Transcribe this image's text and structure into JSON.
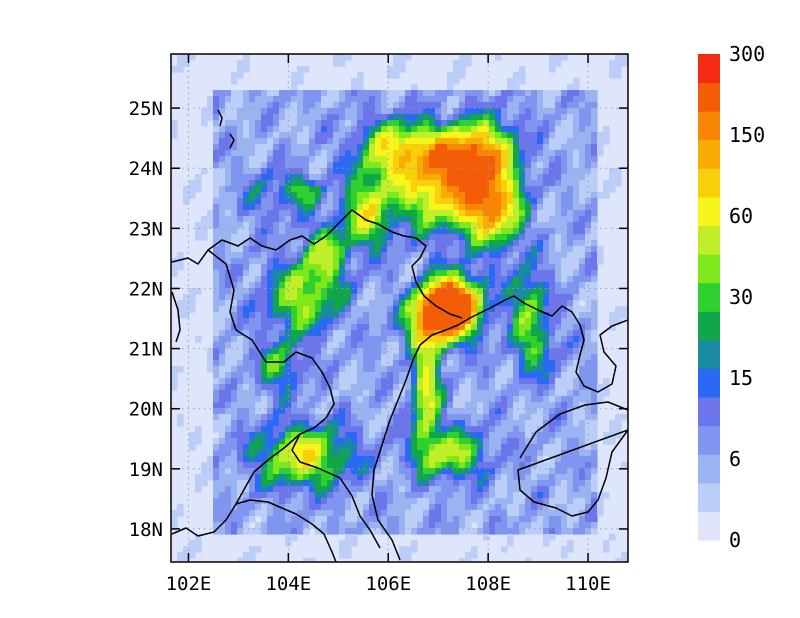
{
  "map": {
    "x_ticks": [
      "102E",
      "104E",
      "106E",
      "108E",
      "110E"
    ],
    "y_ticks": [
      "18N",
      "19N",
      "20N",
      "21N",
      "22N",
      "23N",
      "24N",
      "25N"
    ],
    "lon_range": [
      101.65,
      110.8
    ],
    "lat_range": [
      17.45,
      25.9
    ],
    "grid": true
  },
  "colorbar": {
    "colors": [
      "#dfe6fb",
      "#bccdf7",
      "#9cb3f2",
      "#8095ef",
      "#6c75ea",
      "#2a69f3",
      "#1a8aa0",
      "#10a64a",
      "#2ed12e",
      "#7ee81a",
      "#c0ef29",
      "#f7f51b",
      "#f8cf0a",
      "#f9ac04",
      "#f98504",
      "#f45d08",
      "#f42a12"
    ],
    "labels": [
      "0",
      "6",
      "15",
      "30",
      "60",
      "150",
      "300"
    ]
  },
  "chart_data": {
    "type": "heatmap",
    "title": "",
    "xlabel": "",
    "ylabel": "",
    "x_range": [
      101.65,
      110.8
    ],
    "y_range": [
      17.45,
      25.9
    ],
    "color_levels": [
      "0",
      "6",
      "15",
      "30",
      "60",
      "150",
      "300"
    ],
    "features": [
      "coastlines",
      "country borders"
    ]
  }
}
